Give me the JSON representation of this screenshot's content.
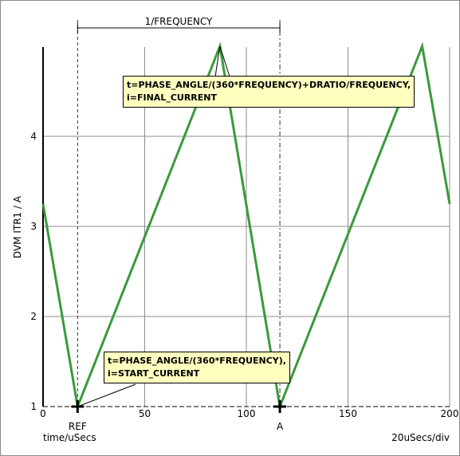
{
  "chart_data": {
    "type": "line",
    "title": "",
    "ylabel": "DVM ITR1 / A",
    "xlabel": "time/uSecs",
    "x_scale_label": "20uSecs/div",
    "xlim": [
      0,
      200
    ],
    "ylim": [
      1,
      5
    ],
    "x_ticks": [
      0,
      50,
      100,
      150,
      200
    ],
    "y_ticks": [
      1,
      2,
      3,
      4
    ],
    "grid": true,
    "series": [
      {
        "color": "#3a9a3a",
        "x": [
          0,
          17,
          87,
          116.5,
          186.5,
          200
        ],
        "y": [
          3.25,
          1,
          5,
          1,
          5,
          3.25
        ]
      }
    ],
    "markers": [
      {
        "label": "REF",
        "x": 17,
        "y": 1
      },
      {
        "label": "A",
        "x": 116.5,
        "y": 1
      }
    ],
    "period_label": "1/FREQUENCY",
    "annotations": [
      {
        "line1": "t=PHASE_ANGLE/(360*FREQUENCY)+DRATIO/FREQUENCY,",
        "line2": "i=FINAL_CURRENT"
      },
      {
        "line1": "t=PHASE_ANGLE/(360*FREQUENCY),",
        "line2": "i=START_CURRENT"
      }
    ]
  }
}
